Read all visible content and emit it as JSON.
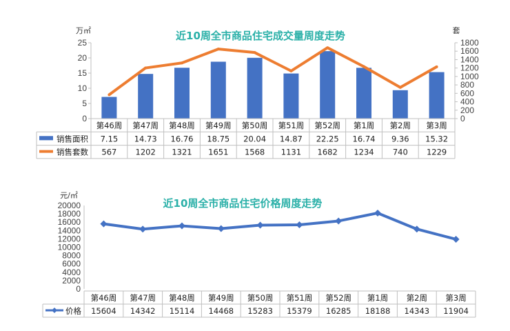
{
  "chart_data": [
    {
      "type": "bar+line",
      "title": "近10周全市商品住宅成交量周度走势",
      "ylabel_left": "万㎡",
      "ylabel_right": "套",
      "ylim_left": [
        0,
        25
      ],
      "yticks_left": [
        0,
        5,
        10,
        15,
        20,
        25
      ],
      "ylim_right": [
        0,
        1800
      ],
      "yticks_right": [
        0,
        200,
        400,
        600,
        800,
        1000,
        1200,
        1400,
        1600,
        1800
      ],
      "categories": [
        "第46周",
        "第47周",
        "第48周",
        "第49周",
        "第50周",
        "第51周",
        "第52周",
        "第1周",
        "第2周",
        "第3周"
      ],
      "series": [
        {
          "name": "销售面积",
          "type": "bar",
          "axis": "left",
          "color": "#4472c4",
          "values": [
            7.15,
            14.73,
            16.76,
            18.75,
            20.04,
            14.87,
            22.25,
            16.74,
            9.36,
            15.32
          ],
          "labels": [
            "7.15",
            "14.73",
            "16.76",
            "18.75",
            "20.04",
            "14.87",
            "22.25",
            "16.74",
            "9.36",
            "15.32"
          ]
        },
        {
          "name": "销售套数",
          "type": "line",
          "axis": "right",
          "color": "#ed7d31",
          "values": [
            567,
            1202,
            1321,
            1651,
            1568,
            1131,
            1682,
            1234,
            740,
            1229
          ],
          "labels": [
            "567",
            "1202",
            "1321",
            "1651",
            "1568",
            "1131",
            "1682",
            "1234",
            "740",
            "1229"
          ]
        }
      ],
      "legend": "data-table"
    },
    {
      "type": "line",
      "title": "近10周全市商品住宅价格周度走势",
      "ylabel": "元/㎡",
      "ylim": [
        0,
        20000
      ],
      "yticks": [
        0,
        2000,
        4000,
        6000,
        8000,
        10000,
        12000,
        14000,
        16000,
        18000,
        20000
      ],
      "categories": [
        "第46周",
        "第47周",
        "第48周",
        "第49周",
        "第50周",
        "第51周",
        "第52周",
        "第1周",
        "第2周",
        "第3周"
      ],
      "series": [
        {
          "name": "价格",
          "type": "line",
          "color": "#4472c4",
          "values": [
            15604,
            14342,
            15114,
            14468,
            15283,
            15379,
            16285,
            18188,
            14343,
            11904
          ],
          "labels": [
            "15604",
            "14342",
            "15114",
            "14468",
            "15283",
            "15379",
            "16285",
            "18188",
            "14343",
            "11904"
          ]
        }
      ],
      "legend": "data-table"
    }
  ]
}
